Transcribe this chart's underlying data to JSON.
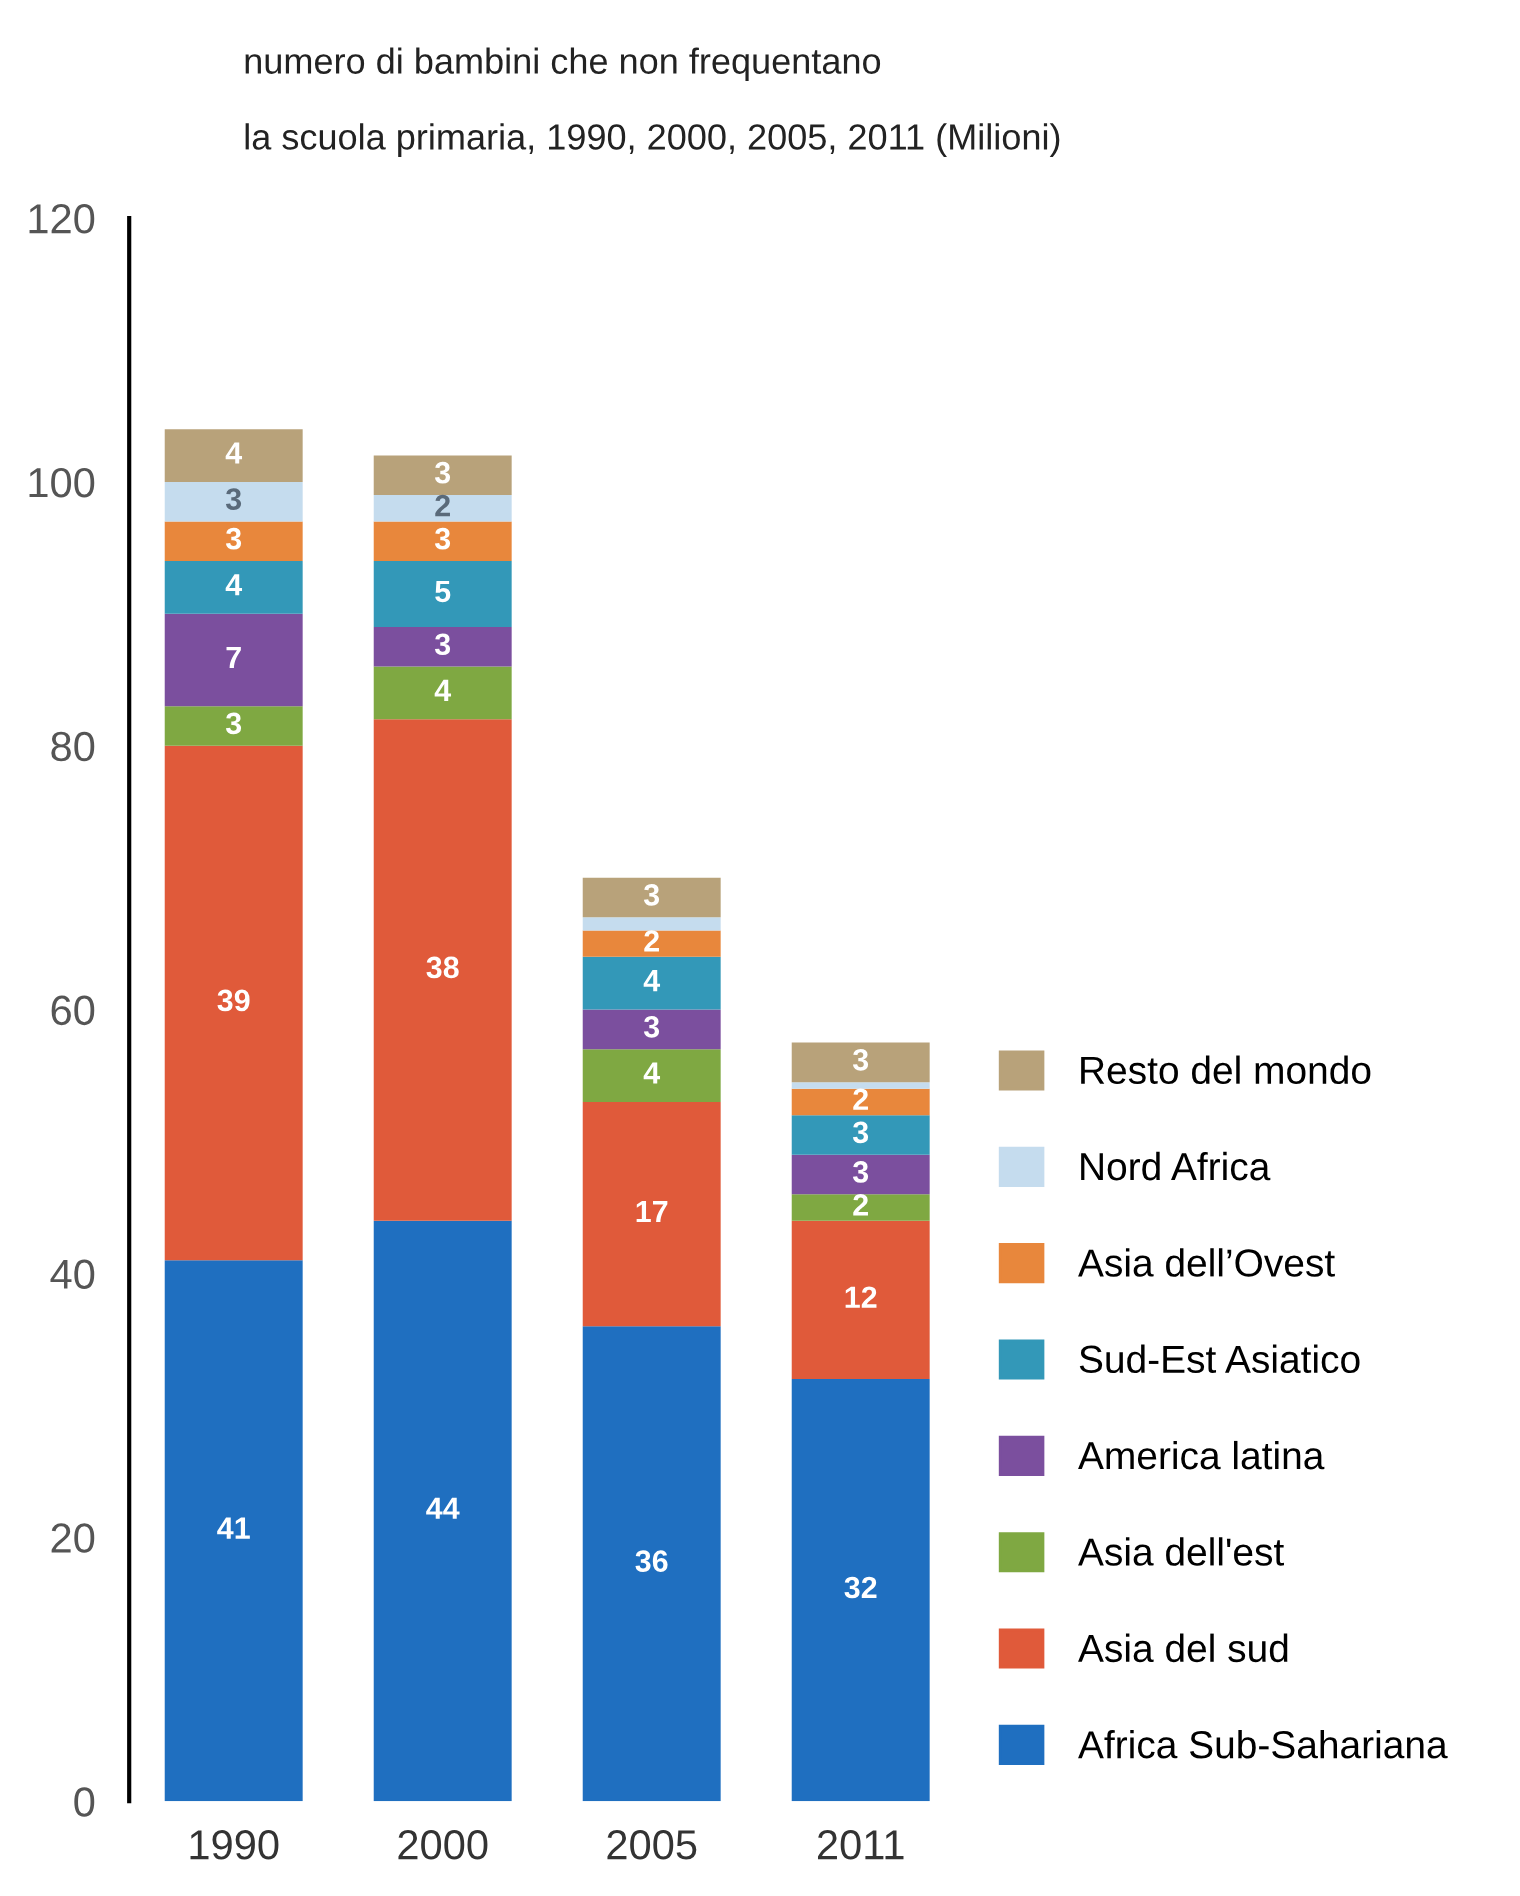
{
  "chart_data": {
    "type": "bar",
    "stacked": true,
    "title": "numero di bambini che non frequentano",
    "subtitle": "la scuola primaria, 1990, 2000, 2005, 2011 (Milioni)",
    "categories": [
      "1990",
      "2000",
      "2005",
      "2011"
    ],
    "ylim": [
      0,
      120
    ],
    "yticks": [
      0,
      20,
      40,
      60,
      80,
      100,
      120
    ],
    "grid": false,
    "legend": "right",
    "series": [
      {
        "name": "Africa Sub-Sahariana",
        "color": "#1f6fc0",
        "values": [
          41,
          44,
          36,
          32
        ],
        "value_labels": [
          "41",
          "44",
          "36",
          "32"
        ]
      },
      {
        "name": "Asia del sud",
        "color": "#e05a3a",
        "values": [
          39,
          38,
          17,
          12
        ],
        "value_labels": [
          "39",
          "38",
          "17",
          "12"
        ]
      },
      {
        "name": "Asia dell'est",
        "color": "#7fa842",
        "values": [
          3,
          4,
          4,
          2
        ],
        "value_labels": [
          "3",
          "4",
          "4",
          "2"
        ]
      },
      {
        "name": "America latina",
        "color": "#7b4f9e",
        "values": [
          7,
          3,
          3,
          3
        ],
        "value_labels": [
          "7",
          "3",
          "3",
          "3"
        ]
      },
      {
        "name": "Sud-Est Asiatico",
        "color": "#3398b8",
        "values": [
          4,
          5,
          4,
          3
        ],
        "value_labels": [
          "4",
          "5",
          "4",
          "3"
        ]
      },
      {
        "name": "Asia dell’Ovest",
        "color": "#e8873c",
        "values": [
          3,
          3,
          2,
          2
        ],
        "value_labels": [
          "3",
          "3",
          "2",
          "2"
        ]
      },
      {
        "name": "Nord Africa",
        "color": "#c5dcee",
        "values": [
          3,
          2,
          1,
          0.5
        ],
        "value_labels": [
          "3",
          "2",
          null,
          null
        ]
      },
      {
        "name": "Resto del mondo",
        "color": "#b8a27a",
        "values": [
          4,
          3,
          3,
          3
        ],
        "value_labels": [
          "4",
          "3",
          "3",
          "3"
        ]
      }
    ]
  }
}
